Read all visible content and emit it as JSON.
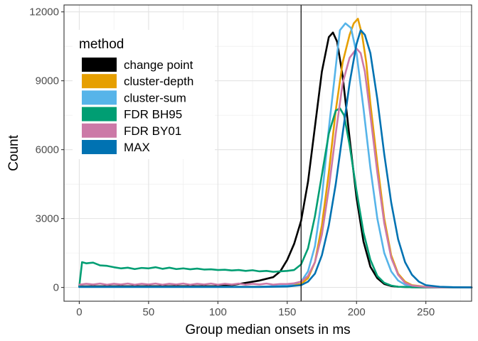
{
  "chart_data": {
    "type": "line",
    "xlabel": "Group median onsets in ms",
    "ylabel": "Count",
    "xlim": [
      -11,
      283
    ],
    "ylim": [
      -600,
      12300
    ],
    "xticks": [
      0,
      50,
      100,
      150,
      200,
      250
    ],
    "yticks": [
      0,
      3000,
      6000,
      9000,
      12000
    ],
    "grid": true,
    "reference_line_x": 160,
    "legend": {
      "title": "method",
      "position": "top-left"
    },
    "series": [
      {
        "name": "change point",
        "color": "#000000",
        "x": [
          0,
          100,
          110,
          120,
          130,
          140,
          145,
          150,
          155,
          160,
          165,
          170,
          175,
          180,
          183,
          186,
          190,
          195,
          200,
          205,
          210,
          215,
          220,
          225,
          230,
          240,
          250,
          260,
          283
        ],
        "y": [
          50,
          60,
          100,
          200,
          300,
          450,
          700,
          1200,
          1900,
          2900,
          4600,
          7000,
          9400,
          10900,
          11100,
          10700,
          9200,
          6500,
          3900,
          2000,
          900,
          400,
          150,
          60,
          30,
          10,
          5,
          0,
          0
        ]
      },
      {
        "name": "cluster-depth",
        "color": "#E69F00",
        "x": [
          0,
          130,
          150,
          160,
          165,
          170,
          175,
          180,
          185,
          190,
          195,
          198,
          201,
          204,
          207,
          210,
          215,
          220,
          225,
          230,
          235,
          240,
          250,
          260,
          283
        ],
        "y": [
          30,
          30,
          60,
          150,
          400,
          1100,
          2700,
          5000,
          7700,
          9800,
          11000,
          11500,
          11700,
          11000,
          9800,
          8000,
          5400,
          3000,
          1400,
          600,
          250,
          100,
          30,
          10,
          0
        ]
      },
      {
        "name": "cluster-sum",
        "color": "#56B4E9",
        "x": [
          0,
          130,
          150,
          160,
          165,
          170,
          175,
          180,
          185,
          188,
          192,
          196,
          200,
          205,
          210,
          215,
          220,
          225,
          230,
          235,
          240,
          250,
          260,
          283
        ],
        "y": [
          30,
          30,
          80,
          250,
          700,
          1800,
          3900,
          6900,
          9600,
          11200,
          11500,
          11300,
          10200,
          7800,
          5200,
          3000,
          1500,
          700,
          300,
          120,
          50,
          20,
          5,
          0
        ]
      },
      {
        "name": "FDR BH95",
        "color": "#009E73",
        "x": [
          0,
          2,
          5,
          10,
          15,
          20,
          25,
          30,
          35,
          40,
          45,
          50,
          55,
          60,
          65,
          70,
          75,
          80,
          85,
          90,
          95,
          100,
          105,
          110,
          115,
          120,
          125,
          130,
          135,
          140,
          145,
          150,
          155,
          160,
          165,
          170,
          175,
          180,
          185,
          188,
          191,
          195,
          200,
          205,
          210,
          215,
          220,
          225,
          230,
          240,
          250,
          260,
          283
        ],
        "y": [
          50,
          1100,
          1050,
          1080,
          960,
          940,
          880,
          830,
          860,
          800,
          850,
          830,
          880,
          810,
          860,
          800,
          830,
          790,
          820,
          780,
          790,
          760,
          770,
          740,
          760,
          720,
          750,
          700,
          720,
          680,
          700,
          720,
          760,
          1000,
          1700,
          3100,
          4900,
          6700,
          7700,
          7800,
          7500,
          6200,
          4200,
          2400,
          1200,
          500,
          200,
          80,
          30,
          10,
          5,
          0,
          0
        ]
      },
      {
        "name": "FDR BY01",
        "color": "#CC79A7",
        "x": [
          0,
          5,
          10,
          15,
          20,
          25,
          30,
          35,
          40,
          45,
          50,
          55,
          60,
          65,
          70,
          75,
          80,
          85,
          90,
          95,
          100,
          105,
          110,
          115,
          120,
          125,
          130,
          135,
          140,
          145,
          150,
          155,
          160,
          165,
          170,
          175,
          180,
          185,
          190,
          195,
          200,
          203,
          206,
          210,
          215,
          220,
          225,
          230,
          235,
          240,
          250,
          260,
          283
        ],
        "y": [
          120,
          160,
          130,
          170,
          120,
          160,
          130,
          170,
          120,
          160,
          130,
          170,
          120,
          160,
          130,
          170,
          120,
          160,
          130,
          170,
          120,
          160,
          130,
          170,
          120,
          160,
          130,
          170,
          120,
          150,
          150,
          180,
          250,
          500,
          1100,
          2300,
          4300,
          6700,
          8900,
          10000,
          10400,
          10200,
          9400,
          7500,
          5000,
          2800,
          1300,
          550,
          200,
          80,
          20,
          5,
          0
        ]
      },
      {
        "name": "MAX",
        "color": "#0072B2",
        "x": [
          0,
          50,
          100,
          130,
          150,
          160,
          165,
          170,
          175,
          180,
          185,
          190,
          195,
          200,
          203,
          206,
          210,
          215,
          220,
          225,
          230,
          235,
          240,
          245,
          250,
          260,
          270,
          283
        ],
        "y": [
          20,
          20,
          20,
          20,
          40,
          100,
          250,
          600,
          1400,
          2700,
          4500,
          6700,
          8900,
          10600,
          11200,
          11000,
          10200,
          8200,
          5800,
          3700,
          2100,
          1100,
          550,
          250,
          100,
          30,
          10,
          0
        ]
      }
    ]
  }
}
